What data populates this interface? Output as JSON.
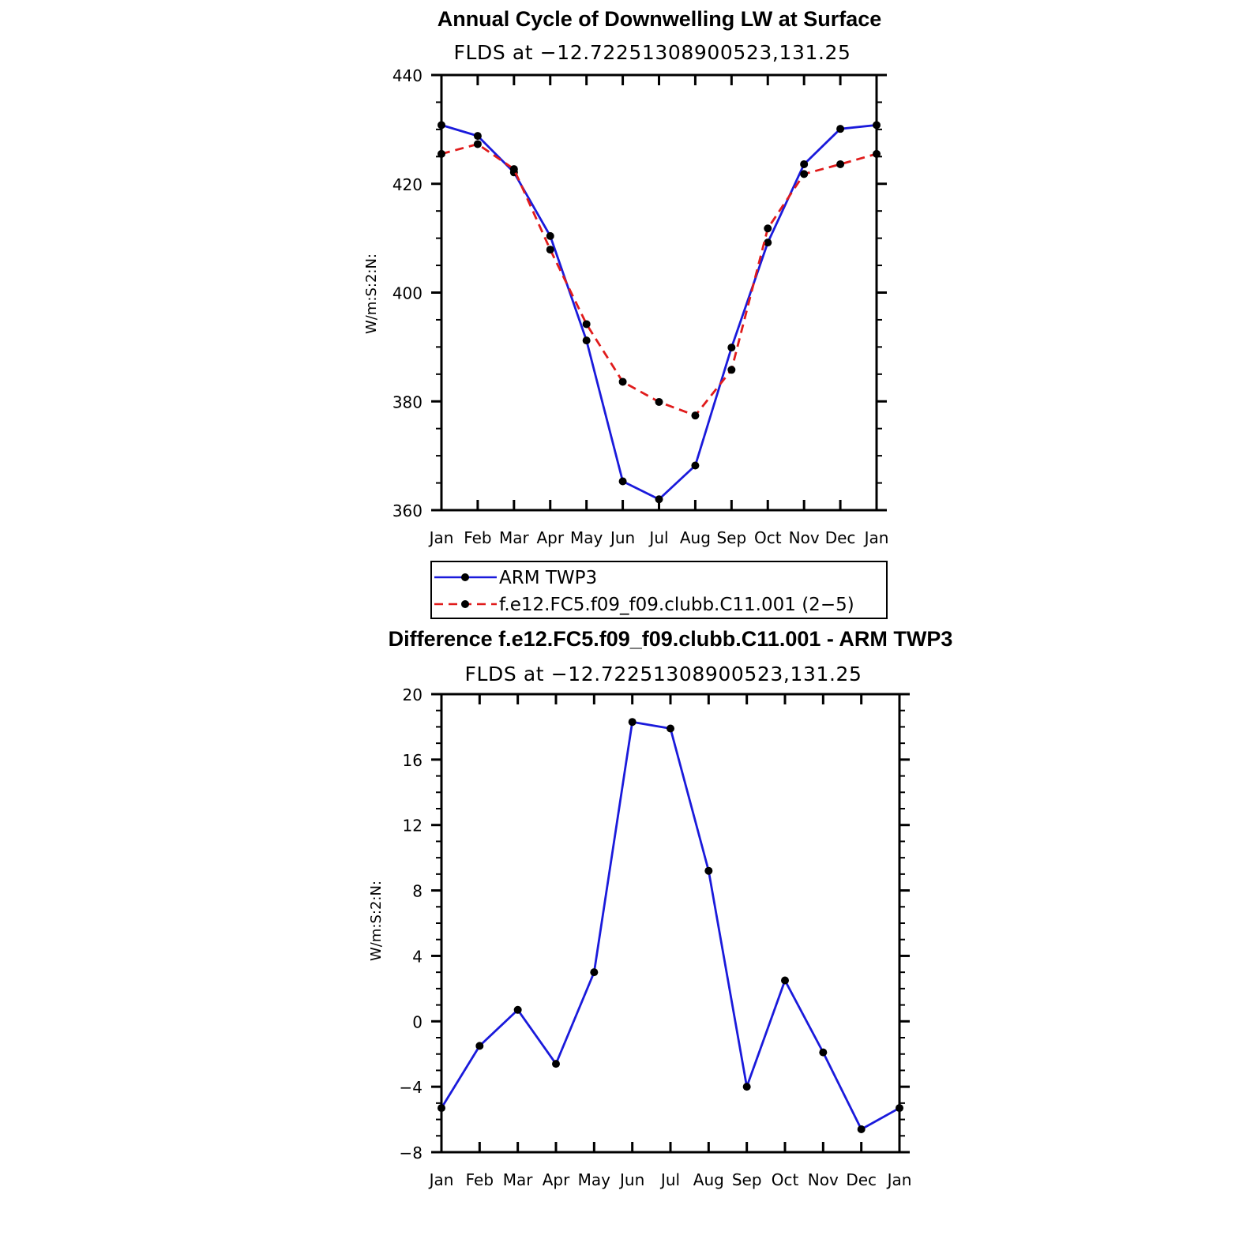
{
  "chart_data": [
    {
      "type": "line",
      "title": "Annual Cycle of Downwelling LW at Surface",
      "subtitle": "FLDS at −12.72251308900523,131.25",
      "xlabel": "",
      "ylabel": "W/m:S:2:N:",
      "categories": [
        "Jan",
        "Feb",
        "Mar",
        "Apr",
        "May",
        "Jun",
        "Jul",
        "Aug",
        "Sep",
        "Oct",
        "Nov",
        "Dec",
        "Jan"
      ],
      "ylim": [
        360,
        440
      ],
      "yticks": [
        360,
        380,
        400,
        420,
        440
      ],
      "ytick_labels": [
        "360",
        "380",
        "400",
        "420",
        "440"
      ],
      "series": [
        {
          "name": "ARM TWP3",
          "color": "#1a1adb",
          "dash": "solid",
          "marker": "circle",
          "values": [
            430.8,
            428.8,
            422.1,
            410.4,
            391.2,
            365.3,
            362.0,
            368.2,
            389.9,
            409.2,
            423.6,
            430.1,
            430.8
          ]
        },
        {
          "name": "f.e12.FC5.f09_f09.clubb.C11.001 (2−5)",
          "color": "#e01b1b",
          "dash": "dashed",
          "marker": "circle",
          "values": [
            425.5,
            427.3,
            422.7,
            407.9,
            394.2,
            383.6,
            379.9,
            377.4,
            385.8,
            411.8,
            421.8,
            423.6,
            425.5
          ]
        }
      ],
      "legend": {
        "position": "bottom",
        "entries": [
          "ARM TWP3",
          "f.e12.FC5.f09_f09.clubb.C11.001 (2−5)"
        ]
      }
    },
    {
      "type": "line",
      "title": "Difference f.e12.FC5.f09_f09.clubb.C11.001 - ARM TWP3",
      "subtitle": "FLDS at −12.72251308900523,131.25",
      "xlabel": "",
      "ylabel": "W/m:S:2:N:",
      "categories": [
        "Jan",
        "Feb",
        "Mar",
        "Apr",
        "May",
        "Jun",
        "Jul",
        "Aug",
        "Sep",
        "Oct",
        "Nov",
        "Dec",
        "Jan"
      ],
      "ylim": [
        -8,
        20
      ],
      "yticks": [
        -8,
        -4,
        0,
        4,
        8,
        12,
        16,
        20
      ],
      "ytick_labels": [
        "−8",
        "−4",
        "0",
        "4",
        "8",
        "12",
        "16",
        "20"
      ],
      "series": [
        {
          "name": "Difference",
          "color": "#1a1adb",
          "dash": "solid",
          "marker": "circle",
          "values": [
            -5.3,
            -1.5,
            0.7,
            -2.6,
            3.0,
            18.3,
            17.9,
            9.2,
            -4.0,
            2.5,
            -1.9,
            -6.6,
            -5.3
          ]
        }
      ]
    }
  ]
}
